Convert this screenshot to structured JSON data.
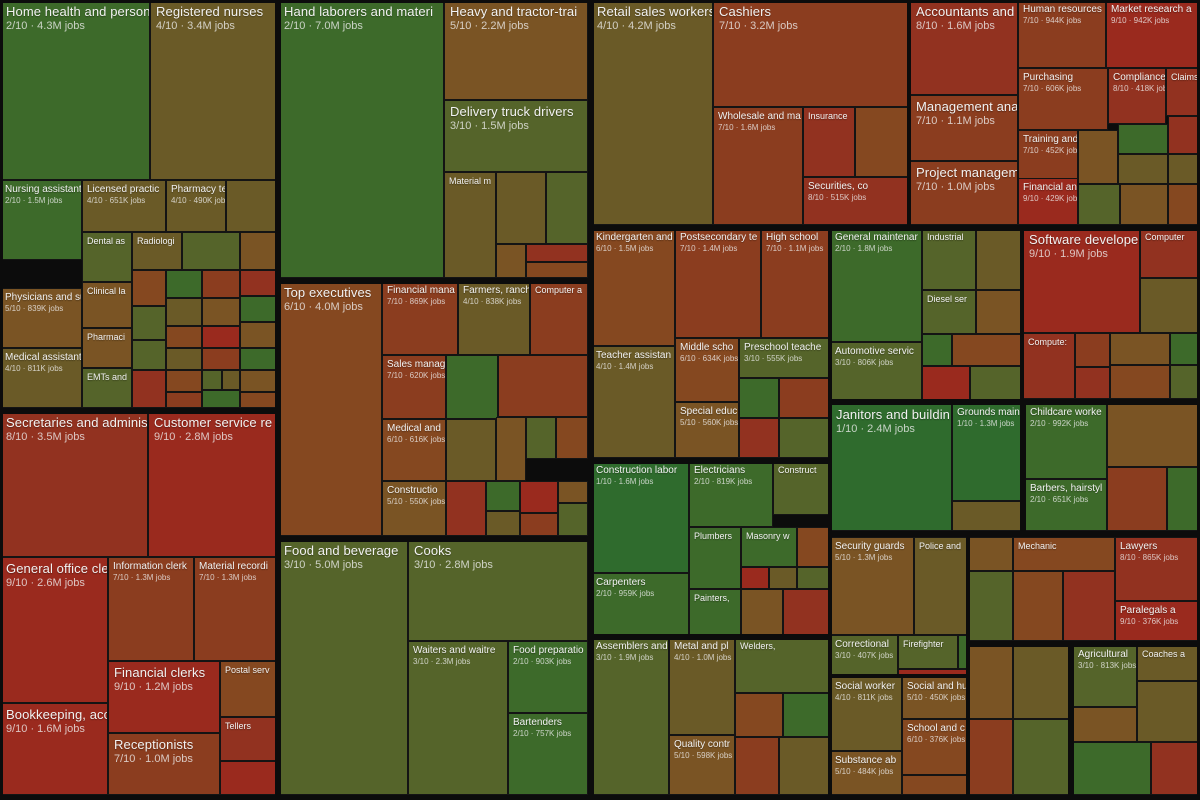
{
  "chart_data": {
    "type": "treemap",
    "colors": {
      "1": "#2f6b2d",
      "2": "#3d6a2a",
      "3": "#55642a",
      "4": "#6a5a27",
      "5": "#7a5424",
      "6": "#854820",
      "7": "#8b3d1f",
      "8": "#923220",
      "9": "#9a2a1e",
      "10": "#a0241c"
    },
    "groups": [
      {
        "name": "g1",
        "tiles": [
          {
            "name": "Home health and person",
            "score": 2,
            "jobs": "4.3M",
            "level": "big"
          },
          {
            "name": "Registered nurses",
            "score": 4,
            "jobs": "3.4M",
            "level": "big"
          },
          {
            "name": "Nursing assistants",
            "score": 2,
            "jobs": "1.5M",
            "level": "med"
          },
          {
            "name": "Licensed practic",
            "score": 4,
            "jobs": "651K",
            "level": "med"
          },
          {
            "name": "Pharmacy te",
            "score": 4,
            "jobs": "490K",
            "level": "med"
          },
          {
            "name": "Physicians and sur",
            "score": 5,
            "jobs": "839K",
            "level": "med"
          },
          {
            "name": "Dental as",
            "score": 3,
            "jobs": "",
            "level": "small"
          },
          {
            "name": "Radiologi",
            "score": 4,
            "jobs": "",
            "level": "small"
          },
          {
            "name": "Clinical la",
            "score": 5,
            "jobs": "",
            "level": "small"
          },
          {
            "name": "Medical assistants",
            "score": 4,
            "jobs": "811K",
            "level": "med"
          },
          {
            "name": "Pharmaci",
            "score": 5,
            "jobs": "",
            "level": "small"
          },
          {
            "name": "EMTs and",
            "score": 3,
            "jobs": "",
            "level": "small"
          }
        ]
      },
      {
        "name": "g2",
        "tiles": [
          {
            "name": "Secretaries and adminis",
            "score": 8,
            "jobs": "3.5M",
            "level": "big"
          },
          {
            "name": "Customer service re",
            "score": 9,
            "jobs": "2.8M",
            "level": "big"
          },
          {
            "name": "General office clerk",
            "score": 9,
            "jobs": "2.6M",
            "level": "big"
          },
          {
            "name": "Information clerk",
            "score": 7,
            "jobs": "1.3M",
            "level": "med"
          },
          {
            "name": "Material recordi",
            "score": 7,
            "jobs": "1.3M",
            "level": "med"
          },
          {
            "name": "Financial clerks",
            "score": 9,
            "jobs": "1.2M",
            "level": "big"
          },
          {
            "name": "Postal serv",
            "score": 6,
            "jobs": "",
            "level": "small"
          },
          {
            "name": "Bookkeeping, acco",
            "score": 9,
            "jobs": "1.6M",
            "level": "big"
          },
          {
            "name": "Receptionists",
            "score": 7,
            "jobs": "1.0M",
            "level": "big"
          },
          {
            "name": "Tellers",
            "score": 8,
            "jobs": "",
            "level": "small"
          }
        ]
      },
      {
        "name": "g3",
        "tiles": [
          {
            "name": "Hand laborers and materi",
            "score": 2,
            "jobs": "7.0M",
            "level": "big"
          },
          {
            "name": "Heavy and tractor-trai",
            "score": 5,
            "jobs": "2.2M",
            "level": "big"
          },
          {
            "name": "Delivery truck drivers",
            "score": 3,
            "jobs": "1.5M",
            "level": "big"
          },
          {
            "name": "Material m",
            "score": 4,
            "jobs": "",
            "level": "small"
          }
        ]
      },
      {
        "name": "g4",
        "tiles": [
          {
            "name": "Top executives",
            "score": 6,
            "jobs": "4.0M",
            "level": "big"
          },
          {
            "name": "Financial mana",
            "score": 7,
            "jobs": "869K",
            "level": "med"
          },
          {
            "name": "Farmers, ranch",
            "score": 4,
            "jobs": "838K",
            "level": "med"
          },
          {
            "name": "Computer a",
            "score": 7,
            "jobs": "",
            "level": "small"
          },
          {
            "name": "Sales manag",
            "score": 7,
            "jobs": "620K",
            "level": "med"
          },
          {
            "name": "Medical and",
            "score": 6,
            "jobs": "616K",
            "level": "med"
          },
          {
            "name": "Constructio",
            "score": 5,
            "jobs": "550K",
            "level": "med"
          }
        ]
      },
      {
        "name": "g5",
        "tiles": [
          {
            "name": "Food and beverage",
            "score": 3,
            "jobs": "5.0M",
            "level": "big"
          },
          {
            "name": "Cooks",
            "score": 3,
            "jobs": "2.8M",
            "level": "big"
          },
          {
            "name": "Waiters and waitre",
            "score": 3,
            "jobs": "2.3M",
            "level": "med"
          },
          {
            "name": "Food preparatio",
            "score": 2,
            "jobs": "903K",
            "level": "med"
          },
          {
            "name": "Bartenders",
            "score": 2,
            "jobs": "757K",
            "level": "med"
          }
        ]
      },
      {
        "name": "g6",
        "tiles": [
          {
            "name": "Retail sales workers",
            "score": 4,
            "jobs": "4.2M",
            "level": "big"
          },
          {
            "name": "Cashiers",
            "score": 7,
            "jobs": "3.2M",
            "level": "big"
          },
          {
            "name": "Wholesale and ma",
            "score": 7,
            "jobs": "1.6M",
            "level": "med"
          },
          {
            "name": "Insurance",
            "score": 8,
            "jobs": "",
            "level": "small"
          },
          {
            "name": "Securities, co",
            "score": 8,
            "jobs": "515K",
            "level": "med"
          }
        ]
      },
      {
        "name": "g7",
        "tiles": [
          {
            "name": "Accountants and a",
            "score": 8,
            "jobs": "1.6M",
            "level": "big"
          },
          {
            "name": "Human resources",
            "score": 7,
            "jobs": "944K",
            "level": "med"
          },
          {
            "name": "Market research a",
            "score": 9,
            "jobs": "942K",
            "level": "med"
          },
          {
            "name": "Purchasing",
            "score": 7,
            "jobs": "606K",
            "level": "med"
          },
          {
            "name": "Compliance",
            "score": 8,
            "jobs": "418K",
            "level": "med"
          },
          {
            "name": "Claims ad",
            "score": 8,
            "jobs": "",
            "level": "small"
          },
          {
            "name": "Management analy",
            "score": 7,
            "jobs": "1.1M",
            "level": "big"
          },
          {
            "name": "Training and",
            "score": 7,
            "jobs": "452K",
            "level": "med"
          },
          {
            "name": "Project manageme",
            "score": 7,
            "jobs": "1.0M",
            "level": "big"
          },
          {
            "name": "Financial an",
            "score": 9,
            "jobs": "429K",
            "level": "med"
          }
        ]
      },
      {
        "name": "g8",
        "tiles": [
          {
            "name": "Kindergarten and",
            "score": 6,
            "jobs": "1.5M",
            "level": "med"
          },
          {
            "name": "Postsecondary te",
            "score": 7,
            "jobs": "1.4M",
            "level": "med"
          },
          {
            "name": "High school",
            "score": 7,
            "jobs": "1.1M",
            "level": "med"
          },
          {
            "name": "Teacher assistan",
            "score": 4,
            "jobs": "1.4M",
            "level": "med"
          },
          {
            "name": "Middle scho",
            "score": 6,
            "jobs": "634K",
            "level": "med"
          },
          {
            "name": "Preschool teache",
            "score": 3,
            "jobs": "555K",
            "level": "med"
          },
          {
            "name": "Special educ",
            "score": 5,
            "jobs": "560K",
            "level": "med"
          }
        ]
      },
      {
        "name": "g9",
        "tiles": [
          {
            "name": "General maintenar",
            "score": 2,
            "jobs": "1.8M",
            "level": "med"
          },
          {
            "name": "Industrial",
            "score": 3,
            "jobs": "",
            "level": "small"
          },
          {
            "name": "Diesel ser",
            "score": 3,
            "jobs": "",
            "level": "small"
          },
          {
            "name": "Automotive servic",
            "score": 3,
            "jobs": "806K",
            "level": "med"
          }
        ]
      },
      {
        "name": "g10",
        "tiles": [
          {
            "name": "Software developer",
            "score": 9,
            "jobs": "1.9M",
            "level": "big"
          },
          {
            "name": "Computer",
            "score": 8,
            "jobs": "",
            "level": "small"
          },
          {
            "name": "Compute:",
            "score": 8,
            "jobs": "",
            "level": "small"
          }
        ]
      },
      {
        "name": "g11",
        "tiles": [
          {
            "name": "Construction labor",
            "score": 1,
            "jobs": "1.6M",
            "level": "med"
          },
          {
            "name": "Electricians",
            "score": 2,
            "jobs": "819K",
            "level": "med"
          },
          {
            "name": "Construct",
            "score": 3,
            "jobs": "",
            "level": "small"
          },
          {
            "name": "Plumbers",
            "score": 2,
            "jobs": "",
            "level": "small"
          },
          {
            "name": "Masonry w",
            "score": 2,
            "jobs": "",
            "level": "small"
          },
          {
            "name": "Carpenters",
            "score": 2,
            "jobs": "959K",
            "level": "med"
          },
          {
            "name": "Painters,",
            "score": 2,
            "jobs": "",
            "level": "small"
          }
        ]
      },
      {
        "name": "g12",
        "tiles": [
          {
            "name": "Janitors and buildin",
            "score": 1,
            "jobs": "2.4M",
            "level": "big"
          },
          {
            "name": "Grounds main",
            "score": 1,
            "jobs": "1.3M",
            "level": "med"
          }
        ]
      },
      {
        "name": "g13",
        "tiles": [
          {
            "name": "Childcare worke",
            "score": 2,
            "jobs": "992K",
            "level": "med"
          },
          {
            "name": "Barbers, hairstyl",
            "score": 2,
            "jobs": "651K",
            "level": "med"
          }
        ]
      },
      {
        "name": "g14",
        "tiles": [
          {
            "name": "Assemblers and",
            "score": 3,
            "jobs": "1.9M",
            "level": "med"
          },
          {
            "name": "Metal and pl",
            "score": 4,
            "jobs": "1.0M",
            "level": "med"
          },
          {
            "name": "Welders,",
            "score": 3,
            "jobs": "",
            "level": "small"
          },
          {
            "name": "Quality contr",
            "score": 5,
            "jobs": "598K",
            "level": "med"
          }
        ]
      },
      {
        "name": "g15",
        "tiles": [
          {
            "name": "Security guards",
            "score": 5,
            "jobs": "1.3M",
            "level": "med"
          },
          {
            "name": "Police and",
            "score": 4,
            "jobs": "",
            "level": "small"
          },
          {
            "name": "Correctional",
            "score": 3,
            "jobs": "407K",
            "level": "med"
          },
          {
            "name": "Firefighter",
            "score": 3,
            "jobs": "",
            "level": "small"
          }
        ]
      },
      {
        "name": "g16",
        "tiles": [
          {
            "name": "Social worker",
            "score": 4,
            "jobs": "811K",
            "level": "med"
          },
          {
            "name": "Social and hu",
            "score": 5,
            "jobs": "450K",
            "level": "med"
          },
          {
            "name": "School and c",
            "score": 6,
            "jobs": "376K",
            "level": "med"
          },
          {
            "name": "Substance ab",
            "score": 5,
            "jobs": "484K",
            "level": "med"
          }
        ]
      },
      {
        "name": "g17",
        "tiles": [
          {
            "name": "Mechanic",
            "score": 6,
            "jobs": "",
            "level": "small"
          }
        ]
      },
      {
        "name": "g18",
        "tiles": [
          {
            "name": "Lawyers",
            "score": 8,
            "jobs": "865K",
            "level": "med"
          },
          {
            "name": "Paralegals a",
            "score": 9,
            "jobs": "376K",
            "level": "med"
          }
        ]
      },
      {
        "name": "g19",
        "tiles": [
          {
            "name": "Agricultural",
            "score": 3,
            "jobs": "813K",
            "level": "med"
          },
          {
            "name": "Coaches a",
            "score": 4,
            "jobs": "",
            "level": "small"
          }
        ]
      }
    ],
    "filler_scores": [
      4,
      3,
      5,
      6,
      2,
      7,
      8,
      3,
      4,
      5,
      2,
      6,
      9,
      3,
      4,
      7,
      5,
      2,
      8,
      6,
      3,
      4,
      5,
      7,
      2,
      6,
      9,
      4,
      3,
      5,
      8,
      6,
      2,
      7,
      4,
      5,
      3,
      6,
      8,
      2,
      9,
      5,
      4,
      7,
      3,
      6,
      5,
      2,
      8,
      4
    ]
  }
}
